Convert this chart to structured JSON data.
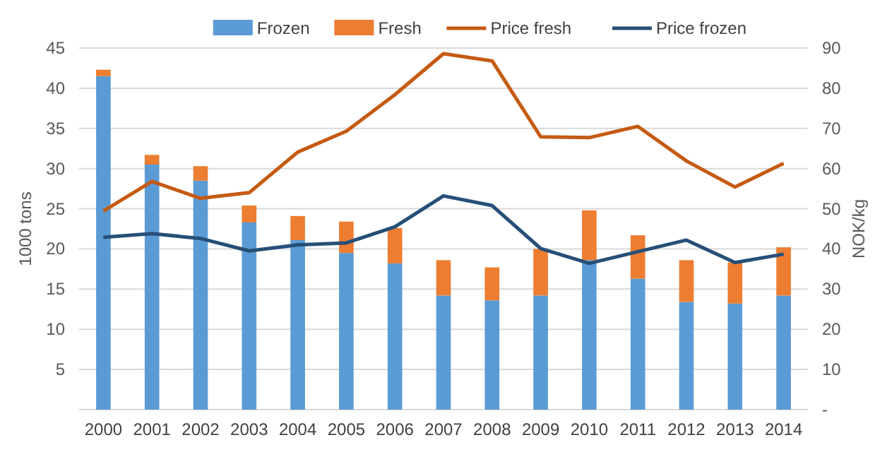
{
  "chart_data": {
    "type": "bar",
    "stacked": true,
    "categories": [
      "2000",
      "2001",
      "2002",
      "2003",
      "2004",
      "2005",
      "2006",
      "2007",
      "2008",
      "2009",
      "2010",
      "2011",
      "2012",
      "2013",
      "2014"
    ],
    "ylabel": "1000 tons",
    "y2label": "NOK/kg",
    "ylim": [
      0,
      45
    ],
    "yticks": [
      5,
      10,
      15,
      20,
      25,
      30,
      35,
      40,
      45
    ],
    "y2lim": [
      0,
      90
    ],
    "y2ticks": [
      {
        "value": 0,
        "label": "-"
      },
      10,
      20,
      30,
      40,
      50,
      60,
      70,
      80,
      90
    ],
    "grid": "y",
    "legend": "top",
    "series": [
      {
        "name": "Frozen",
        "color": "#5b9bd5",
        "values": [
          41.5,
          30.5,
          28.5,
          23.3,
          21.1,
          19.5,
          18.2,
          14.2,
          13.6,
          14.2,
          18.6,
          16.3,
          13.4,
          13.2,
          14.2
        ]
      },
      {
        "name": "Fresh",
        "color": "#ed7d31",
        "values": [
          0.8,
          1.2,
          1.8,
          2.1,
          3.0,
          3.9,
          4.4,
          4.4,
          4.1,
          5.8,
          6.2,
          5.4,
          5.2,
          5.1,
          6.0
        ]
      },
      {
        "name": "Price fresh",
        "type": "line",
        "axis": "y2",
        "color": "#c55a11",
        "values": [
          49.4,
          56.8,
          52.6,
          54.0,
          64.1,
          69.3,
          78.4,
          88.6,
          86.8,
          67.9,
          67.7,
          70.5,
          61.9,
          55.4,
          61.3
        ]
      },
      {
        "name": "Price frozen",
        "type": "line",
        "axis": "y2",
        "color": "#264f78",
        "values": [
          42.9,
          43.8,
          42.6,
          39.5,
          41.0,
          41.5,
          45.5,
          53.2,
          50.8,
          40.1,
          36.4,
          39.3,
          42.2,
          36.6,
          38.7
        ]
      }
    ]
  }
}
